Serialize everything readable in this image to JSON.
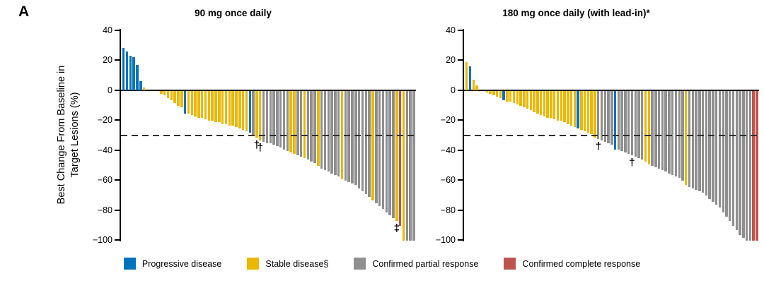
{
  "panel_label": "A",
  "y_axis_title_line1": "Best Change From Baseline in",
  "y_axis_title_line2": "Target Lesions (%)",
  "colors": {
    "b": "#0072BC",
    "y": "#EBB700",
    "g": "#8F8F8F",
    "r": "#BF534E",
    "reference_line": "#2E2E2E",
    "axis": "#000000"
  },
  "legend": [
    {
      "key": "b",
      "label": "Progressive disease"
    },
    {
      "key": "y",
      "label": "Stable disease§"
    },
    {
      "key": "g",
      "label": "Confirmed partial response"
    },
    {
      "key": "r",
      "label": "Confirmed complete response"
    }
  ],
  "chart_data": [
    {
      "type": "bar",
      "subtype": "waterfall",
      "title": "90 mg once daily",
      "ylabel": "Best Change From Baseline in Target Lesions (%)",
      "ylim": [
        -100,
        40
      ],
      "yticks": [
        40,
        20,
        0,
        -20,
        -40,
        -60,
        -80,
        -100
      ],
      "ytick_labels": [
        "40",
        "20",
        "0",
        "−20",
        "−40",
        "−60",
        "−80",
        "−100"
      ],
      "reference_line_y": -30,
      "grid": false,
      "bars": [
        [
          28,
          "b"
        ],
        [
          26,
          "b"
        ],
        [
          23,
          "b"
        ],
        [
          22,
          "b"
        ],
        [
          17,
          "b"
        ],
        [
          6,
          "b"
        ],
        [
          2,
          "y"
        ],
        [
          0,
          "y"
        ],
        [
          0,
          "y"
        ],
        [
          0,
          "y"
        ],
        [
          0,
          "y"
        ],
        [
          -2,
          "y"
        ],
        [
          -3,
          "y"
        ],
        [
          -5,
          "y"
        ],
        [
          -6,
          "y"
        ],
        [
          -8,
          "y"
        ],
        [
          -10,
          "y"
        ],
        [
          -11,
          "y"
        ],
        [
          -15,
          "b"
        ],
        [
          -15,
          "y"
        ],
        [
          -16,
          "y"
        ],
        [
          -17,
          "y"
        ],
        [
          -18,
          "y"
        ],
        [
          -18,
          "y"
        ],
        [
          -19,
          "y"
        ],
        [
          -20,
          "y"
        ],
        [
          -20,
          "y"
        ],
        [
          -21,
          "y"
        ],
        [
          -21,
          "y"
        ],
        [
          -22,
          "y"
        ],
        [
          -22,
          "y"
        ],
        [
          -23,
          "y"
        ],
        [
          -23,
          "y"
        ],
        [
          -24,
          "y"
        ],
        [
          -25,
          "y"
        ],
        [
          -26,
          "y"
        ],
        [
          -27,
          "y"
        ],
        [
          -28,
          "b"
        ],
        [
          -30,
          "g"
        ],
        [
          -31,
          "y",
          "†"
        ],
        [
          -33,
          "y",
          "†"
        ],
        [
          -34,
          "g"
        ],
        [
          -35,
          "g"
        ],
        [
          -35,
          "g"
        ],
        [
          -36,
          "g"
        ],
        [
          -37,
          "g"
        ],
        [
          -38,
          "g"
        ],
        [
          -39,
          "g"
        ],
        [
          -40,
          "g"
        ],
        [
          -41,
          "y"
        ],
        [
          -42,
          "y"
        ],
        [
          -43,
          "g"
        ],
        [
          -44,
          "g"
        ],
        [
          -45,
          "y"
        ],
        [
          -46,
          "g"
        ],
        [
          -47,
          "g"
        ],
        [
          -48,
          "g"
        ],
        [
          -50,
          "y"
        ],
        [
          -52,
          "g"
        ],
        [
          -53,
          "g"
        ],
        [
          -54,
          "g"
        ],
        [
          -55,
          "g"
        ],
        [
          -56,
          "g"
        ],
        [
          -57,
          "g"
        ],
        [
          -59,
          "y"
        ],
        [
          -60,
          "g"
        ],
        [
          -61,
          "g"
        ],
        [
          -62,
          "g"
        ],
        [
          -63,
          "g"
        ],
        [
          -65,
          "g"
        ],
        [
          -67,
          "g"
        ],
        [
          -69,
          "g"
        ],
        [
          -71,
          "g"
        ],
        [
          -73,
          "y"
        ],
        [
          -75,
          "g"
        ],
        [
          -77,
          "g"
        ],
        [
          -79,
          "g"
        ],
        [
          -81,
          "g"
        ],
        [
          -83,
          "g"
        ],
        [
          -85,
          "g"
        ],
        [
          -87,
          "y",
          "‡"
        ],
        [
          -90,
          "r"
        ],
        [
          -100,
          "y"
        ],
        [
          -100,
          "g"
        ],
        [
          -100,
          "g"
        ],
        [
          -100,
          "g"
        ]
      ]
    },
    {
      "type": "bar",
      "subtype": "waterfall",
      "title": "180 mg once daily (with lead-in)*",
      "ylabel": "Best Change From Baseline in Target Lesions (%)",
      "ylim": [
        -100,
        40
      ],
      "yticks": [
        40,
        20,
        0,
        -20,
        -40,
        -60,
        -80,
        -100
      ],
      "ytick_labels": [
        "40",
        "20",
        "0",
        "−20",
        "−40",
        "−60",
        "−80",
        "−100"
      ],
      "reference_line_y": -30,
      "grid": false,
      "bars": [
        [
          19,
          "y"
        ],
        [
          16,
          "b"
        ],
        [
          7,
          "y"
        ],
        [
          3,
          "y"
        ],
        [
          0,
          "y"
        ],
        [
          0,
          "y"
        ],
        [
          -1,
          "y"
        ],
        [
          -2,
          "y"
        ],
        [
          -3,
          "y"
        ],
        [
          -4,
          "y"
        ],
        [
          -5,
          "y"
        ],
        [
          -6,
          "b"
        ],
        [
          -7,
          "y"
        ],
        [
          -7,
          "y"
        ],
        [
          -8,
          "y"
        ],
        [
          -9,
          "y"
        ],
        [
          -10,
          "y"
        ],
        [
          -11,
          "y"
        ],
        [
          -12,
          "y"
        ],
        [
          -13,
          "y"
        ],
        [
          -14,
          "y"
        ],
        [
          -15,
          "y"
        ],
        [
          -16,
          "y"
        ],
        [
          -17,
          "y"
        ],
        [
          -18,
          "y"
        ],
        [
          -18,
          "y"
        ],
        [
          -19,
          "y"
        ],
        [
          -20,
          "y"
        ],
        [
          -20,
          "y"
        ],
        [
          -21,
          "y"
        ],
        [
          -22,
          "y"
        ],
        [
          -23,
          "y"
        ],
        [
          -24,
          "y"
        ],
        [
          -25,
          "b"
        ],
        [
          -26,
          "y"
        ],
        [
          -27,
          "y"
        ],
        [
          -28,
          "y"
        ],
        [
          -29,
          "y"
        ],
        [
          -31,
          "y"
        ],
        [
          -32,
          "g",
          "†"
        ],
        [
          -33,
          "g"
        ],
        [
          -34,
          "g"
        ],
        [
          -35,
          "g"
        ],
        [
          -36,
          "g"
        ],
        [
          -39,
          "b"
        ],
        [
          -39,
          "g"
        ],
        [
          -40,
          "g"
        ],
        [
          -41,
          "g"
        ],
        [
          -42,
          "g"
        ],
        [
          -43,
          "g",
          "†"
        ],
        [
          -44,
          "g"
        ],
        [
          -45,
          "g"
        ],
        [
          -46,
          "g"
        ],
        [
          -47,
          "y"
        ],
        [
          -49,
          "y"
        ],
        [
          -50,
          "g"
        ],
        [
          -51,
          "g"
        ],
        [
          -52,
          "g"
        ],
        [
          -53,
          "g"
        ],
        [
          -54,
          "g"
        ],
        [
          -55,
          "g"
        ],
        [
          -56,
          "g"
        ],
        [
          -57,
          "g"
        ],
        [
          -58,
          "g"
        ],
        [
          -60,
          "g"
        ],
        [
          -63,
          "y"
        ],
        [
          -64,
          "g"
        ],
        [
          -65,
          "g"
        ],
        [
          -66,
          "g"
        ],
        [
          -67,
          "g"
        ],
        [
          -68,
          "g"
        ],
        [
          -70,
          "g"
        ],
        [
          -72,
          "g"
        ],
        [
          -74,
          "g"
        ],
        [
          -76,
          "g"
        ],
        [
          -78,
          "g"
        ],
        [
          -81,
          "g"
        ],
        [
          -84,
          "g"
        ],
        [
          -87,
          "g"
        ],
        [
          -90,
          "g"
        ],
        [
          -93,
          "g"
        ],
        [
          -96,
          "g"
        ],
        [
          -98,
          "g"
        ],
        [
          -100,
          "g"
        ],
        [
          -100,
          "g"
        ],
        [
          -100,
          "r"
        ],
        [
          -100,
          "r"
        ]
      ]
    }
  ],
  "footnote_markers": {
    "dagger": "†",
    "double_dagger": "‡"
  }
}
